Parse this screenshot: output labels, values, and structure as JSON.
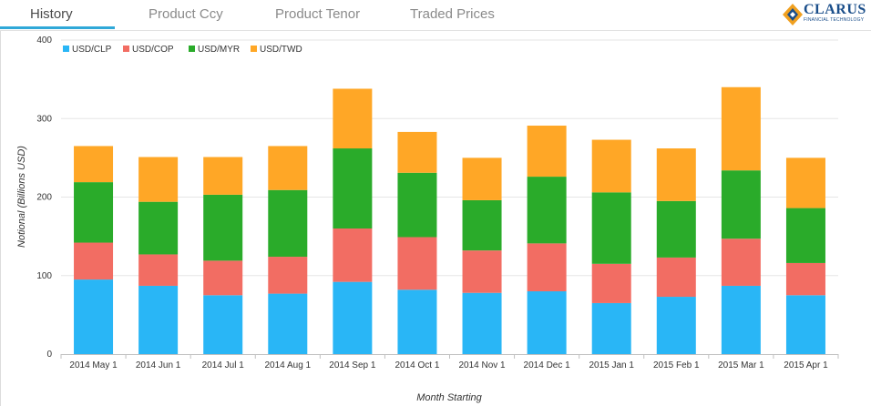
{
  "tabs": [
    {
      "label": "History",
      "active": true
    },
    {
      "label": "Product Ccy",
      "active": false
    },
    {
      "label": "Product Tenor",
      "active": false
    },
    {
      "label": "Traded Prices",
      "active": false
    }
  ],
  "logo": {
    "name": "CLARUS",
    "subtitle": "FINANCIAL TECHNOLOGY"
  },
  "chart_data": {
    "type": "bar",
    "stacked": true,
    "xlabel": "Month Starting",
    "ylabel": "Notional (Billions USD)",
    "ylim": [
      0,
      400
    ],
    "yticks": [
      0,
      100,
      200,
      300,
      400
    ],
    "legend_position": "top-left",
    "categories": [
      "2014 May 1",
      "2014 Jun 1",
      "2014 Jul 1",
      "2014 Aug 1",
      "2014 Sep 1",
      "2014 Oct 1",
      "2014 Nov 1",
      "2014 Dec 1",
      "2015 Jan 1",
      "2015 Feb 1",
      "2015 Mar 1",
      "2015 Apr 1"
    ],
    "series": [
      {
        "name": "USD/CLP",
        "color": "#29b6f6",
        "values": [
          95,
          87,
          75,
          77,
          92,
          82,
          78,
          80,
          65,
          73,
          87,
          75
        ]
      },
      {
        "name": "USD/COP",
        "color": "#f26d63",
        "values": [
          47,
          40,
          44,
          47,
          68,
          67,
          54,
          61,
          50,
          50,
          60,
          41
        ]
      },
      {
        "name": "USD/MYR",
        "color": "#2aab2a",
        "values": [
          77,
          67,
          84,
          85,
          102,
          82,
          64,
          85,
          91,
          72,
          87,
          70
        ]
      },
      {
        "name": "USD/TWD",
        "color": "#ffa726",
        "values": [
          46,
          57,
          48,
          56,
          76,
          52,
          54,
          65,
          67,
          67,
          106,
          64
        ]
      }
    ]
  }
}
